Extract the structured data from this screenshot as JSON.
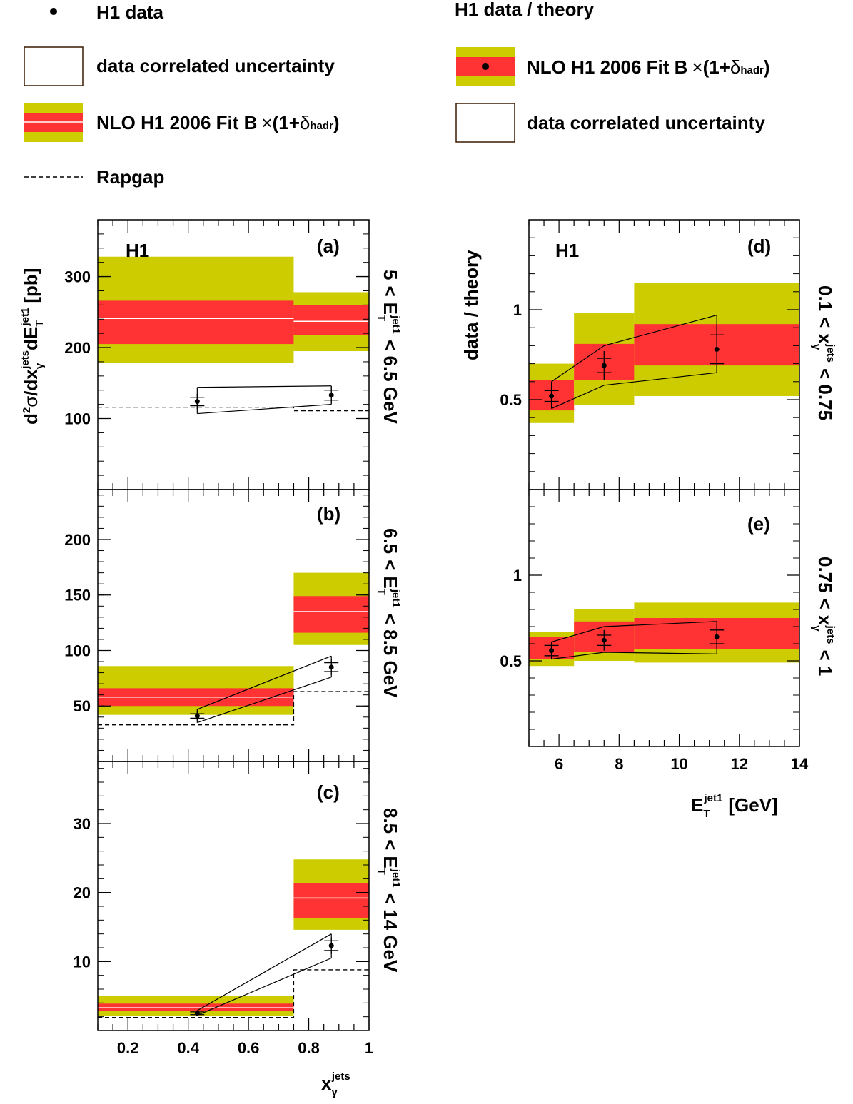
{
  "legend_left": {
    "h1_data": "H1 data",
    "corr_unc": "data correlated uncertainty",
    "nlo_prefix": "NLO H1 2006 Fit B",
    "times": "×",
    "open": "(1+",
    "delta": "δ",
    "delta_sub": "hadr",
    "close": ")",
    "rapgap": "Rapgap"
  },
  "legend_right": {
    "title": "H1 data / theory",
    "nlo_prefix": "NLO H1 2006 Fit B",
    "times": "×",
    "open": "(1+",
    "delta": "δ",
    "delta_sub": "hadr",
    "close": ")",
    "corr_unc": "data correlated uncertainty"
  },
  "colors": {
    "outer_band": "#cccc00",
    "inner_band": "#ff3333",
    "central_line": "#ffffff",
    "data": "#000000"
  },
  "left_axis_label": {
    "d": "d",
    "sup2": "2",
    "sigma": "σ",
    "slash": "/dx",
    "gamma": "γ",
    "jets": "jets",
    "dE": "dE",
    "T": "T",
    "jet1": "jet1",
    "unit": "[pb]"
  },
  "left_xlabel": {
    "x": "x",
    "gamma": "γ",
    "jets": "jets"
  },
  "right_ylabel": "data / theory",
  "right_xlabel": {
    "E": "E",
    "T": "T",
    "jet1": "jet1",
    "unit": "[GeV]"
  },
  "chart_data": [
    {
      "panel": "a",
      "type": "bar",
      "label": "(a)",
      "h1": "H1",
      "side": {
        "lo": "5",
        "lt": "<",
        "E": "E",
        "T": "T",
        "jet1": "jet1",
        "hi": "< 6.5 GeV"
      },
      "xlim": [
        0.1,
        1.0
      ],
      "ylim": [
        0,
        380
      ],
      "yticks": [
        100,
        200,
        300
      ],
      "ytick_labels": [
        "100",
        "200",
        "300"
      ],
      "bins": [
        {
          "x0": 0.1,
          "x1": 0.75,
          "outer": [
            178,
            328
          ],
          "inner": [
            205,
            266
          ],
          "central": 241
        },
        {
          "x0": 0.75,
          "x1": 1.0,
          "outer": [
            195,
            278
          ],
          "inner": [
            218,
            260
          ],
          "central": 237
        }
      ],
      "data": [
        {
          "x": 0.43,
          "y": 124,
          "stat": 6,
          "tot": 11
        },
        {
          "x": 0.875,
          "y": 133,
          "stat": 7,
          "tot": 12
        }
      ],
      "corr_band": [
        [
          0.43,
          107,
          144
        ],
        [
          0.875,
          120,
          146
        ]
      ],
      "rapgap": [
        [
          0.1,
          116
        ],
        [
          0.75,
          116
        ],
        [
          0.75,
          111
        ],
        [
          1.0,
          111
        ]
      ]
    },
    {
      "panel": "b",
      "type": "bar",
      "label": "(b)",
      "side": {
        "lo": "6.5",
        "lt": "<",
        "E": "E",
        "T": "T",
        "jet1": "jet1",
        "hi": "< 8.5 GeV"
      },
      "xlim": [
        0.1,
        1.0
      ],
      "ylim": [
        0,
        245
      ],
      "yticks": [
        50,
        100,
        150,
        200
      ],
      "ytick_labels": [
        "50",
        "100",
        "150",
        "200"
      ],
      "bins": [
        {
          "x0": 0.1,
          "x1": 0.75,
          "outer": [
            42,
            86
          ],
          "inner": [
            50,
            66
          ],
          "central": 58
        },
        {
          "x0": 0.75,
          "x1": 1.0,
          "outer": [
            105,
            170
          ],
          "inner": [
            116,
            149
          ],
          "central": 135
        }
      ],
      "data": [
        {
          "x": 0.43,
          "y": 41,
          "stat": 2,
          "tot": 4
        },
        {
          "x": 0.875,
          "y": 85,
          "stat": 4,
          "tot": 7
        }
      ],
      "corr_band": [
        [
          0.43,
          35,
          47
        ],
        [
          0.875,
          76,
          95
        ]
      ],
      "rapgap": [
        [
          0.1,
          33
        ],
        [
          0.75,
          33
        ],
        [
          0.75,
          63
        ],
        [
          1.0,
          63
        ]
      ]
    },
    {
      "panel": "c",
      "type": "bar",
      "label": "(c)",
      "side": {
        "lo": "8.5",
        "lt": "<",
        "E": "E",
        "T": "T",
        "jet1": "jet1",
        "hi": "< 14 GeV"
      },
      "xlim": [
        0.1,
        1.0
      ],
      "ylim": [
        0,
        39
      ],
      "yticks": [
        10,
        20,
        30
      ],
      "ytick_labels": [
        "10",
        "20",
        "30"
      ],
      "xticks": [
        0.2,
        0.4,
        0.6,
        0.8,
        1.0
      ],
      "xtick_labels": [
        "0.2",
        "0.4",
        "0.6",
        "0.8",
        "1"
      ],
      "bins": [
        {
          "x0": 0.1,
          "x1": 0.75,
          "outer": [
            2.1,
            5.0
          ],
          "inner": [
            2.8,
            3.9
          ],
          "central": 3.3
        },
        {
          "x0": 0.75,
          "x1": 1.0,
          "outer": [
            14.6,
            24.8
          ],
          "inner": [
            16.3,
            21.4
          ],
          "central": 19.2
        }
      ],
      "data": [
        {
          "x": 0.43,
          "y": 2.5,
          "stat": 0.2,
          "tot": 0.4
        },
        {
          "x": 0.875,
          "y": 12.3,
          "stat": 0.7,
          "tot": 1.2
        }
      ],
      "corr_band": [
        [
          0.43,
          2.2,
          2.9
        ],
        [
          0.875,
          10.5,
          14.0
        ]
      ],
      "rapgap": [
        [
          0.1,
          1.9
        ],
        [
          0.75,
          1.9
        ],
        [
          0.75,
          8.8
        ],
        [
          1.0,
          8.8
        ]
      ]
    },
    {
      "panel": "d",
      "type": "bar",
      "label": "(d)",
      "h1": "H1",
      "side": {
        "lo": "0.1",
        "lt": "<",
        "x": "x",
        "gamma": "γ",
        "jets": "jets",
        "hi": "< 0.75"
      },
      "xlim": [
        5,
        14
      ],
      "ylim": [
        0,
        1.5
      ],
      "yticks": [
        0.5,
        1.0
      ],
      "ytick_labels": [
        "0.5",
        "1"
      ],
      "bins": [
        {
          "x0": 5,
          "x1": 6.5,
          "outer": [
            0.37,
            0.7
          ],
          "inner": [
            0.44,
            0.61
          ],
          "central": null
        },
        {
          "x0": 6.5,
          "x1": 8.5,
          "outer": [
            0.47,
            0.98
          ],
          "inner": [
            0.61,
            0.81
          ],
          "central": null
        },
        {
          "x0": 8.5,
          "x1": 14,
          "outer": [
            0.52,
            1.15
          ],
          "inner": [
            0.69,
            0.92
          ],
          "central": null
        }
      ],
      "data": [
        {
          "x": 5.75,
          "y": 0.52,
          "stat": 0.03,
          "tot": 0.05
        },
        {
          "x": 7.5,
          "y": 0.69,
          "stat": 0.04,
          "tot": 0.08
        },
        {
          "x": 11.25,
          "y": 0.78,
          "stat": 0.08,
          "tot": 0.13
        }
      ],
      "corr_band": [
        [
          5.75,
          0.45,
          0.6
        ],
        [
          7.5,
          0.58,
          0.8
        ],
        [
          11.25,
          0.65,
          0.97
        ]
      ]
    },
    {
      "panel": "e",
      "type": "bar",
      "label": "(e)",
      "side": {
        "lo": "0.75",
        "lt": "<",
        "x": "x",
        "gamma": "γ",
        "jets": "jets",
        "hi": "< 1"
      },
      "xlim": [
        5,
        14
      ],
      "ylim": [
        0,
        1.5
      ],
      "yticks": [
        0.5,
        1.0
      ],
      "ytick_labels": [
        "0.5",
        "1"
      ],
      "xticks": [
        6,
        8,
        10,
        12,
        14
      ],
      "xtick_labels": [
        "6",
        "8",
        "10",
        "12",
        "14"
      ],
      "bins": [
        {
          "x0": 5,
          "x1": 6.5,
          "outer": [
            0.47,
            0.67
          ],
          "inner": [
            0.51,
            0.64
          ],
          "central": null
        },
        {
          "x0": 6.5,
          "x1": 8.5,
          "outer": [
            0.5,
            0.8
          ],
          "inner": [
            0.55,
            0.73
          ],
          "central": null
        },
        {
          "x0": 8.5,
          "x1": 14,
          "outer": [
            0.49,
            0.84
          ],
          "inner": [
            0.57,
            0.75
          ],
          "central": null
        }
      ],
      "data": [
        {
          "x": 5.75,
          "y": 0.56,
          "stat": 0.03,
          "tot": 0.05
        },
        {
          "x": 7.5,
          "y": 0.62,
          "stat": 0.03,
          "tot": 0.06
        },
        {
          "x": 11.25,
          "y": 0.64,
          "stat": 0.04,
          "tot": 0.07
        }
      ],
      "corr_band": [
        [
          5.75,
          0.51,
          0.61
        ],
        [
          7.5,
          0.55,
          0.7
        ],
        [
          11.25,
          0.54,
          0.73
        ]
      ]
    }
  ]
}
